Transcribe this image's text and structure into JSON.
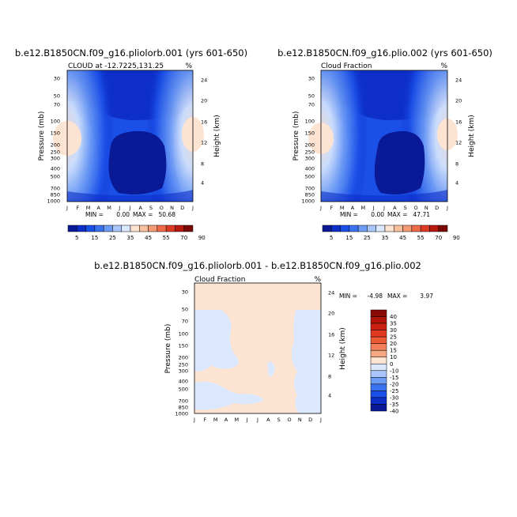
{
  "chart_data": [
    {
      "type": "contour",
      "title": "b.e12.B1850CN.f09_g16.pliolorb.001 (yrs 601-650)",
      "subtitle_left": "CLOUD at -12.7225,131.25",
      "subtitle_right": "%",
      "xlabel": "",
      "ylabel": "Pressure (mb)",
      "ylabel_right": "Height (km)",
      "x_ticks": [
        "J",
        "F",
        "M",
        "A",
        "M",
        "J",
        "J",
        "A",
        "S",
        "O",
        "N",
        "D",
        "J"
      ],
      "y_ticks": [
        "30",
        "50",
        "70",
        "100",
        "150",
        "200",
        "250",
        "300",
        "400",
        "500",
        "700",
        "850",
        "1000"
      ],
      "y_ticks_right": [
        "24",
        "20",
        "16",
        "12",
        "8",
        "4"
      ],
      "min_label": "MIN =",
      "min_value": "0.00",
      "max_label": "MAX =",
      "max_value": "50.68",
      "colorbar_labels": [
        "5",
        "15",
        "25",
        "35",
        "45",
        "55",
        "70",
        "90"
      ]
    },
    {
      "type": "contour",
      "title": "b.e12.B1850CN.f09_g16.plio.002 (yrs 601-650)",
      "subtitle_left": "Cloud Fraction",
      "subtitle_right": "%",
      "xlabel": "",
      "ylabel": "Pressure (mb)",
      "ylabel_right": "Height (km)",
      "x_ticks": [
        "J",
        "F",
        "M",
        "A",
        "M",
        "J",
        "J",
        "A",
        "S",
        "O",
        "N",
        "D",
        "J"
      ],
      "y_ticks": [
        "30",
        "50",
        "70",
        "100",
        "150",
        "200",
        "250",
        "300",
        "400",
        "500",
        "700",
        "850",
        "1000"
      ],
      "y_ticks_right": [
        "24",
        "20",
        "16",
        "12",
        "8",
        "4"
      ],
      "min_label": "MIN =",
      "min_value": "0.00",
      "max_label": "MAX =",
      "max_value": "47.71",
      "colorbar_labels": [
        "5",
        "15",
        "25",
        "35",
        "45",
        "55",
        "70",
        "90"
      ]
    },
    {
      "type": "contour",
      "title": "b.e12.B1850CN.f09_g16.pliolorb.001 - b.e12.B1850CN.f09_g16.plio.002",
      "subtitle_left": "Cloud Fraction",
      "subtitle_right": "%",
      "xlabel": "",
      "ylabel": "Pressure (mb)",
      "ylabel_right": "Height (km)",
      "x_ticks": [
        "J",
        "F",
        "M",
        "A",
        "M",
        "J",
        "J",
        "A",
        "S",
        "O",
        "N",
        "D",
        "J"
      ],
      "y_ticks": [
        "30",
        "50",
        "70",
        "100",
        "150",
        "200",
        "250",
        "300",
        "400",
        "500",
        "700",
        "850",
        "1000"
      ],
      "y_ticks_right": [
        "24",
        "20",
        "16",
        "12",
        "8",
        "4"
      ],
      "min_label": "MIN =",
      "min_value": "-4.98",
      "max_label": "MAX =",
      "max_value": "3.97",
      "colorbar_labels": [
        "40",
        "35",
        "30",
        "25",
        "20",
        "15",
        "10",
        "0",
        "-10",
        "-15",
        "-20",
        "-25",
        "-30",
        "-35",
        "-40"
      ]
    }
  ],
  "colors": {
    "abs_levels": [
      "#0a1a96",
      "#0d2fc8",
      "#1a50e8",
      "#3a72f0",
      "#6e9cf5",
      "#a9c6fa",
      "#dbe8fd",
      "#fde4d2",
      "#f9c0a0",
      "#f49a72",
      "#ee6a48",
      "#dd3a26",
      "#b81a10",
      "#7a0a06"
    ],
    "diff_levels": [
      "#8a0a06",
      "#b01408",
      "#cc2010",
      "#e23a1e",
      "#ee5a36",
      "#f27e5a",
      "#f6a884",
      "#fde4d2",
      "#dbe8fd",
      "#a9c6fa",
      "#6e9cf5",
      "#3a72f0",
      "#1a50e8",
      "#0d2fc8",
      "#0a1a96"
    ]
  }
}
